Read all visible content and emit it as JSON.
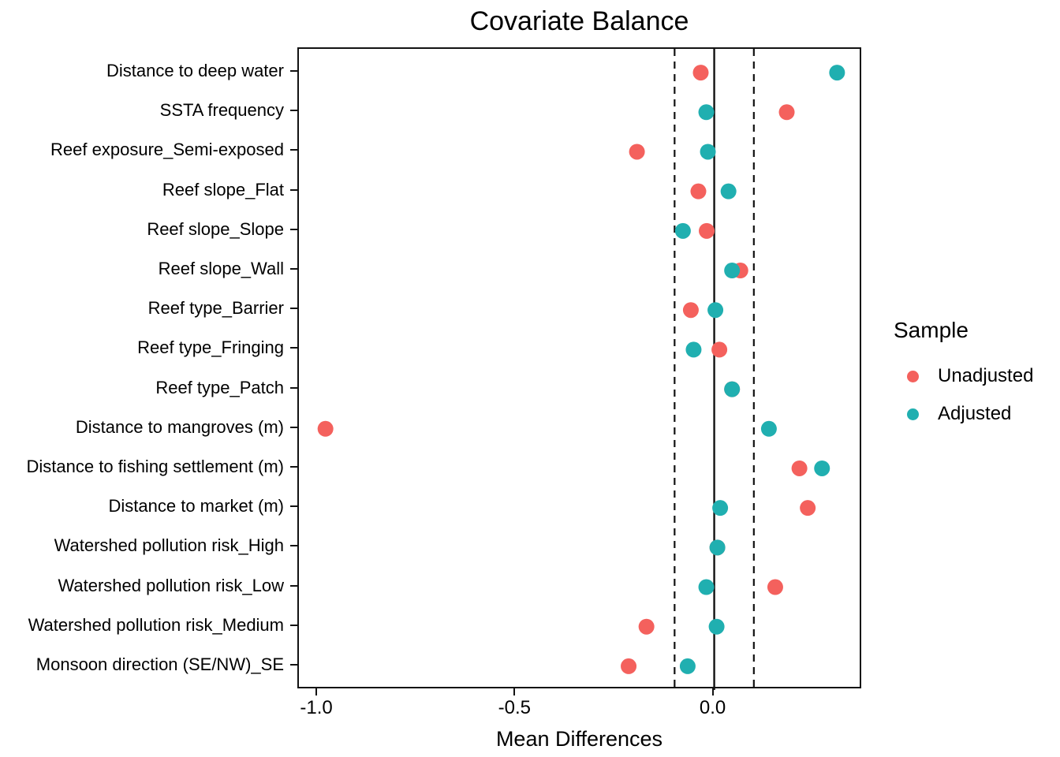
{
  "chart_data": {
    "type": "scatter",
    "title": "Covariate Balance",
    "xlabel": "Mean Differences",
    "ylabel": "",
    "categories": [
      "Distance to deep water",
      "SSTA frequency",
      "Reef exposure_Semi-exposed",
      "Reef slope_Flat",
      "Reef slope_Slope",
      "Reef slope_Wall",
      "Reef type_Barrier",
      "Reef type_Fringing",
      "Reef type_Patch",
      "Distance to mangroves (m)",
      "Distance to fishing settlement (m)",
      "Distance to market (m)",
      "Watershed pollution risk_High",
      "Watershed pollution risk_Low",
      "Watershed pollution risk_Medium",
      "Monsoon direction (SE/NW)_SE"
    ],
    "series": [
      {
        "name": "Unadjusted",
        "color": "#F4615D",
        "values": [
          -0.034,
          0.183,
          -0.195,
          -0.04,
          -0.019,
          0.066,
          -0.059,
          0.013,
          0.045,
          -0.981,
          0.215,
          0.236,
          0.008,
          0.154,
          -0.171,
          -0.216
        ]
      },
      {
        "name": "Adjusted",
        "color": "#20AFB0",
        "values": [
          0.31,
          -0.02,
          -0.016,
          0.036,
          -0.079,
          0.045,
          0.003,
          -0.052,
          0.045,
          0.138,
          0.272,
          0.015,
          0.008,
          -0.02,
          0.006,
          -0.067
        ]
      }
    ],
    "x_ticks": {
      "values": [
        -1.0,
        -0.5,
        0.0
      ],
      "labels": [
        "-1.0",
        "-0.5",
        "0.0"
      ]
    },
    "xlim": [
      -1.048,
      0.375
    ],
    "reference_lines": {
      "solid_at": 0.0,
      "dashed_at": [
        -0.1,
        0.1
      ]
    },
    "legend": {
      "title": "Sample",
      "position": "right",
      "items": [
        {
          "label": "Unadjusted",
          "color": "#F4615D"
        },
        {
          "label": "Adjusted",
          "color": "#20AFB0"
        }
      ]
    },
    "grid": false,
    "point_radius_px": 10,
    "axis_color": "#121212"
  }
}
